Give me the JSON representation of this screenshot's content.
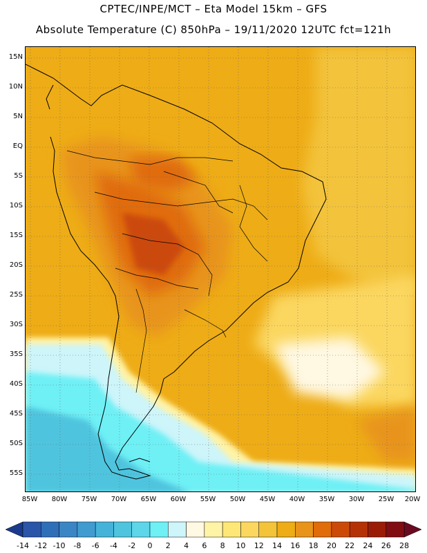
{
  "header": {
    "line1": "CPTEC/INPE/MCT –  Eta Model 15km – GFS",
    "line2": "Absolute Temperature (C) 850hPa – 19/11/2020 12UTC fct=121h"
  },
  "map": {
    "lat_labels": [
      "15N",
      "10N",
      "5N",
      "EQ",
      "5S",
      "10S",
      "15S",
      "20S",
      "25S",
      "30S",
      "35S",
      "40S",
      "45S",
      "50S",
      "55S"
    ],
    "lon_labels": [
      "85W",
      "80W",
      "75W",
      "70W",
      "65W",
      "60W",
      "55W",
      "50W",
      "45W",
      "40W",
      "35W",
      "30W",
      "25W",
      "20W"
    ],
    "legend_values": [
      "-14",
      "-12",
      "-10",
      "-8",
      "-6",
      "-4",
      "-2",
      "0",
      "2",
      "4",
      "6",
      "8",
      "10",
      "12",
      "14",
      "16",
      "18",
      "20",
      "22",
      "24",
      "26",
      "28"
    ],
    "legend_colors": [
      "#1a3a8c",
      "#2a55a8",
      "#2f6fb8",
      "#3a86c4",
      "#3f9bd0",
      "#45b3d9",
      "#4fc4de",
      "#5cd6e8",
      "#6ef0f5",
      "#cdf5fa",
      "#fff8e2",
      "#fff3a6",
      "#fde877",
      "#fbd760",
      "#f3c33a",
      "#eeac16",
      "#e8941a",
      "#e06c0a",
      "#cc4a08",
      "#b53207",
      "#9a1c06",
      "#7f0d12",
      "#6a0a20"
    ]
  }
}
